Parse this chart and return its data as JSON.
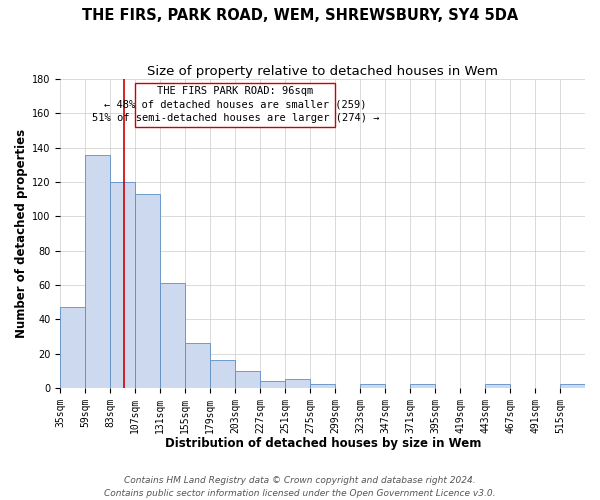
{
  "title": "THE FIRS, PARK ROAD, WEM, SHREWSBURY, SY4 5DA",
  "subtitle": "Size of property relative to detached houses in Wem",
  "xlabel": "Distribution of detached houses by size in Wem",
  "ylabel": "Number of detached properties",
  "bar_values": [
    47,
    136,
    120,
    113,
    61,
    26,
    16,
    10,
    4,
    5,
    2,
    0,
    2,
    0,
    2,
    0,
    0,
    2,
    0,
    0,
    2
  ],
  "bar_labels": [
    "35sqm",
    "59sqm",
    "83sqm",
    "107sqm",
    "131sqm",
    "155sqm",
    "179sqm",
    "203sqm",
    "227sqm",
    "251sqm",
    "275sqm",
    "299sqm",
    "323sqm",
    "347sqm",
    "371sqm",
    "395sqm",
    "419sqm",
    "443sqm",
    "467sqm",
    "491sqm",
    "515sqm"
  ],
  "bin_edges": [
    35,
    59,
    83,
    107,
    131,
    155,
    179,
    203,
    227,
    251,
    275,
    299,
    323,
    347,
    371,
    395,
    419,
    443,
    467,
    491,
    515,
    539
  ],
  "bar_color": "#ccd9ef",
  "bar_edge_color": "#5b8ec4",
  "ylim": [
    0,
    180
  ],
  "yticks": [
    0,
    20,
    40,
    60,
    80,
    100,
    120,
    140,
    160,
    180
  ],
  "vline_x": 96,
  "vline_color": "#cc0000",
  "annotation_text_line1": "THE FIRS PARK ROAD: 96sqm",
  "annotation_text_line2": "← 48% of detached houses are smaller (259)",
  "annotation_text_line3": "51% of semi-detached houses are larger (274) →",
  "annotation_box_color": "#ffffff",
  "annotation_box_edge": "#cc0000",
  "footer_line1": "Contains HM Land Registry data © Crown copyright and database right 2024.",
  "footer_line2": "Contains public sector information licensed under the Open Government Licence v3.0.",
  "background_color": "#ffffff",
  "grid_color": "#cccccc",
  "title_fontsize": 10.5,
  "subtitle_fontsize": 9.5,
  "axis_label_fontsize": 8.5,
  "tick_fontsize": 7,
  "annotation_fontsize": 7.5,
  "footer_fontsize": 6.5
}
